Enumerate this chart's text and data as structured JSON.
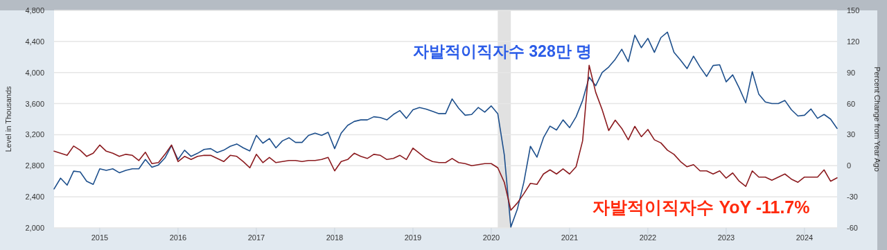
{
  "chart_data": {
    "type": "line",
    "x": [
      "2014-06",
      "2014-07",
      "2014-08",
      "2014-09",
      "2014-10",
      "2014-11",
      "2014-12",
      "2015-01",
      "2015-02",
      "2015-03",
      "2015-04",
      "2015-05",
      "2015-06",
      "2015-07",
      "2015-08",
      "2015-09",
      "2015-10",
      "2015-11",
      "2015-12",
      "2016-01",
      "2016-02",
      "2016-03",
      "2016-04",
      "2016-05",
      "2016-06",
      "2016-07",
      "2016-08",
      "2016-09",
      "2016-10",
      "2016-11",
      "2016-12",
      "2017-01",
      "2017-02",
      "2017-03",
      "2017-04",
      "2017-05",
      "2017-06",
      "2017-07",
      "2017-08",
      "2017-09",
      "2017-10",
      "2017-11",
      "2017-12",
      "2018-01",
      "2018-02",
      "2018-03",
      "2018-04",
      "2018-05",
      "2018-06",
      "2018-07",
      "2018-08",
      "2018-09",
      "2018-10",
      "2018-11",
      "2018-12",
      "2019-01",
      "2019-02",
      "2019-03",
      "2019-04",
      "2019-05",
      "2019-06",
      "2019-07",
      "2019-08",
      "2019-09",
      "2019-10",
      "2019-11",
      "2019-12",
      "2020-01",
      "2020-02",
      "2020-03",
      "2020-04",
      "2020-05",
      "2020-06",
      "2020-07",
      "2020-08",
      "2020-09",
      "2020-10",
      "2020-11",
      "2020-12",
      "2021-01",
      "2021-02",
      "2021-03",
      "2021-04",
      "2021-05",
      "2021-06",
      "2021-07",
      "2021-08",
      "2021-09",
      "2021-10",
      "2021-11",
      "2021-12",
      "2022-01",
      "2022-02",
      "2022-03",
      "2022-04",
      "2022-05",
      "2022-06",
      "2022-07",
      "2022-08",
      "2022-09",
      "2022-10",
      "2022-11",
      "2022-12",
      "2023-01",
      "2023-02",
      "2023-03",
      "2023-04",
      "2023-05",
      "2023-06",
      "2023-07",
      "2023-08",
      "2023-09",
      "2023-10",
      "2023-11",
      "2023-12",
      "2024-01",
      "2024-02",
      "2024-03",
      "2024-04",
      "2024-05",
      "2024-06"
    ],
    "series": [
      {
        "color": "#1d4f8c",
        "values": [
          2500,
          2640,
          2550,
          2730,
          2720,
          2600,
          2560,
          2760,
          2740,
          2760,
          2710,
          2740,
          2760,
          2760,
          2880,
          2780,
          2810,
          2900,
          3060,
          2880,
          3000,
          2920,
          2960,
          3010,
          3020,
          2970,
          3000,
          3050,
          3080,
          3030,
          2990,
          3190,
          3090,
          3150,
          3030,
          3120,
          3160,
          3100,
          3100,
          3190,
          3220,
          3190,
          3230,
          3020,
          3220,
          3320,
          3370,
          3390,
          3390,
          3430,
          3420,
          3390,
          3460,
          3510,
          3410,
          3520,
          3550,
          3530,
          3500,
          3470,
          3470,
          3660,
          3540,
          3450,
          3460,
          3550,
          3490,
          3570,
          3470,
          2940,
          2010,
          2240,
          2590,
          3050,
          2910,
          3160,
          3310,
          3260,
          3390,
          3290,
          3430,
          3640,
          3940,
          3830,
          4000,
          4070,
          4170,
          4300,
          4140,
          4480,
          4320,
          4440,
          4260,
          4450,
          4520,
          4260,
          4160,
          4050,
          4210,
          4070,
          3950,
          4090,
          4100,
          3880,
          3970,
          3800,
          3610,
          4010,
          3720,
          3620,
          3600,
          3600,
          3640,
          3520,
          3440,
          3450,
          3530,
          3410,
          3460,
          3400,
          3280
        ]
      },
      {
        "color": "#8b1a1e",
        "axis": "y2",
        "values": [
          14,
          12,
          10,
          19,
          15,
          9,
          12,
          20,
          14,
          12,
          9,
          11,
          10,
          5,
          13,
          2,
          3,
          11,
          20,
          4,
          9,
          6,
          9,
          10,
          10,
          7,
          4,
          10,
          9,
          4,
          -2,
          11,
          3,
          8,
          3,
          4,
          5,
          5,
          4,
          5,
          5,
          6,
          8,
          -5,
          4,
          6,
          12,
          9,
          7,
          11,
          10,
          6,
          7,
          10,
          6,
          17,
          12,
          7,
          4,
          3,
          3,
          7,
          3,
          2,
          0,
          1,
          2,
          2,
          -2,
          -16,
          -43,
          -36,
          -27,
          -17,
          -18,
          -8,
          -4,
          -8,
          -3,
          -8,
          -1,
          24,
          97,
          71,
          54,
          34,
          44,
          36,
          25,
          38,
          28,
          35,
          25,
          22,
          15,
          11,
          4,
          -1,
          1,
          -5,
          -5,
          -8,
          -5,
          -12,
          -7,
          -15,
          -20,
          -5,
          -11,
          -11,
          -14,
          -11,
          -8,
          -13,
          -16,
          -11,
          -11,
          -11,
          -4,
          -15,
          -11.7
        ]
      }
    ],
    "xlim": [
      "2014-06",
      "2024-06"
    ],
    "xticks": [
      "2015",
      "2016",
      "2017",
      "2018",
      "2019",
      "2020",
      "2021",
      "2022",
      "2023",
      "2024"
    ],
    "ylim": [
      2000,
      4800
    ],
    "yticks": [
      {
        "value": 2000,
        "label": "2,000"
      },
      {
        "value": 2400,
        "label": "2,400"
      },
      {
        "value": 2800,
        "label": "2,800"
      },
      {
        "value": 3200,
        "label": "3,200"
      },
      {
        "value": 3600,
        "label": "3,600"
      },
      {
        "value": 4000,
        "label": "4,000"
      },
      {
        "value": 4400,
        "label": "4,400"
      },
      {
        "value": 4800,
        "label": "4,800"
      }
    ],
    "y2lim": [
      -60,
      150
    ],
    "y2ticks": [
      -60,
      -30,
      0,
      30,
      60,
      90,
      120,
      150
    ],
    "ylabel": "Level in Thousands",
    "y2label": "Percent Change from Year Ago",
    "grid": "y",
    "bands": [
      {
        "axis": "x",
        "from": "2020-02",
        "to": "2020-04",
        "color": "#e1e1e1"
      }
    ],
    "annotations": [
      "자발적이직자수 328만 명",
      "자발적이직자수 YoY -11.7%"
    ]
  }
}
